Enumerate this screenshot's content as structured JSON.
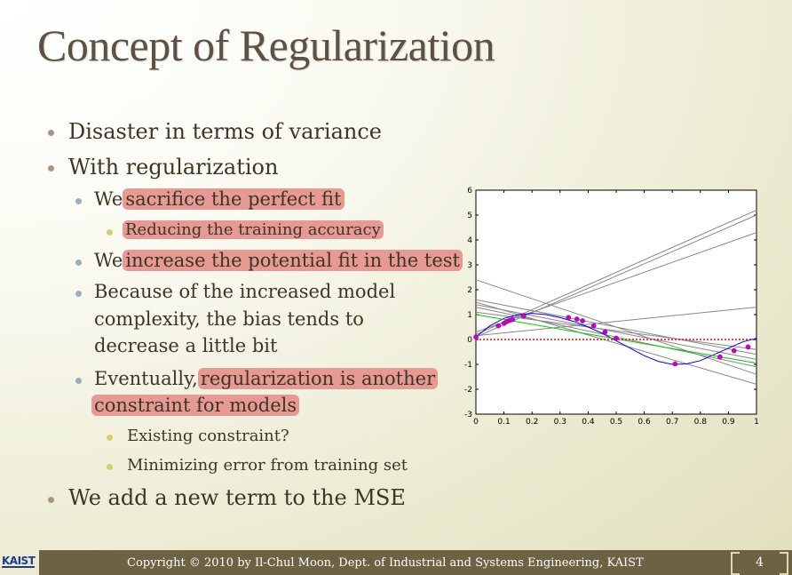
{
  "title": "Concept of Regularization",
  "bullets": {
    "b1": "Disaster in terms of variance",
    "b2": "With regularization",
    "b2_1_pre": "We",
    "b2_1_hl": "sacrifice the perfect fit",
    "b2_1_1": "Reducing the training accuracy",
    "b2_2_pre": "We",
    "b2_2_hl": "increase the potential fit in the test",
    "b2_3_line1": "Because of the increased model",
    "b2_3_line2": "complexity, the bias tends to",
    "b2_3_line3": "decrease a little bit",
    "b2_4_pre": "Eventually,",
    "b2_4_hl1": "regularization is another",
    "b2_4_hl2": "constraint for models",
    "b2_4_1": "Existing constraint?",
    "b2_4_2": "Minimizing error from training set",
    "b3": "We add a new term to the MSE"
  },
  "footer": {
    "logo": "KAIST",
    "copyright": "Copyright © 2010 by Il-Chul Moon, Dept. of Industrial and Systems Engineering, KAIST",
    "page": "4"
  },
  "colors": {
    "highlight": "#e79a93",
    "footer_bar": "#6e6244",
    "fit_curve": "#0000ff",
    "true_line": "#00cc00",
    "zero_line": "#ff0000",
    "points": "#cc00cc",
    "model_lines": "#888888"
  },
  "chart_data": {
    "type": "line",
    "xlim": [
      0,
      1
    ],
    "ylim": [
      -3,
      6
    ],
    "xticks": [
      "0",
      "0.1",
      "0.2",
      "0.3",
      "0.4",
      "0.5",
      "0.6",
      "0.7",
      "0.8",
      "0.9",
      "1"
    ],
    "yticks": [
      "-3",
      "-2",
      "-1",
      "0",
      "1",
      "2",
      "3",
      "4",
      "5",
      "6"
    ],
    "grid": false,
    "series": [
      {
        "style": "model-lines",
        "segments": [
          [
            [
              0,
              0.2
            ],
            [
              1,
              5.2
            ]
          ],
          [
            [
              0,
              0.1
            ],
            [
              1,
              5.0
            ]
          ],
          [
            [
              0,
              0.3
            ],
            [
              1,
              4.3
            ]
          ],
          [
            [
              0,
              0.15
            ],
            [
              1,
              1.3
            ]
          ],
          [
            [
              0,
              1.4
            ],
            [
              1,
              -0.8
            ]
          ],
          [
            [
              0,
              1.6
            ],
            [
              1,
              -0.6
            ]
          ],
          [
            [
              0,
              1.3
            ],
            [
              1,
              -1.1
            ]
          ],
          [
            [
              0,
              2.4
            ],
            [
              1,
              -1.4
            ]
          ],
          [
            [
              0,
              1.5
            ],
            [
              1,
              -1.8
            ]
          ],
          [
            [
              0,
              1.1
            ],
            [
              1,
              -0.4
            ]
          ]
        ]
      },
      {
        "style": "fit-curve",
        "x": [
          0,
          0.05,
          0.1,
          0.15,
          0.2,
          0.25,
          0.3,
          0.35,
          0.4,
          0.45,
          0.5,
          0.55,
          0.6,
          0.65,
          0.7,
          0.75,
          0.8,
          0.85,
          0.9,
          0.95,
          1.0
        ],
        "y": [
          0.1,
          0.55,
          0.85,
          1.0,
          1.05,
          1.0,
          0.88,
          0.72,
          0.5,
          0.25,
          -0.05,
          -0.35,
          -0.65,
          -0.88,
          -1.0,
          -0.98,
          -0.85,
          -0.6,
          -0.35,
          -0.1,
          0.05
        ]
      },
      {
        "style": "true-line",
        "x": [
          0,
          1
        ],
        "y": [
          1.0,
          -0.95
        ]
      },
      {
        "style": "zero-line",
        "x": [
          0,
          1
        ],
        "y": [
          0,
          0
        ]
      },
      {
        "style": "points",
        "x": [
          0.0,
          0.08,
          0.1,
          0.11,
          0.12,
          0.13,
          0.17,
          0.33,
          0.36,
          0.38,
          0.42,
          0.46,
          0.5,
          0.71,
          0.87,
          0.92,
          0.97
        ],
        "y": [
          0.1,
          0.55,
          0.65,
          0.72,
          0.77,
          0.8,
          0.95,
          0.88,
          0.82,
          0.75,
          0.55,
          0.3,
          0.05,
          -0.98,
          -0.7,
          -0.45,
          -0.3
        ]
      }
    ]
  }
}
